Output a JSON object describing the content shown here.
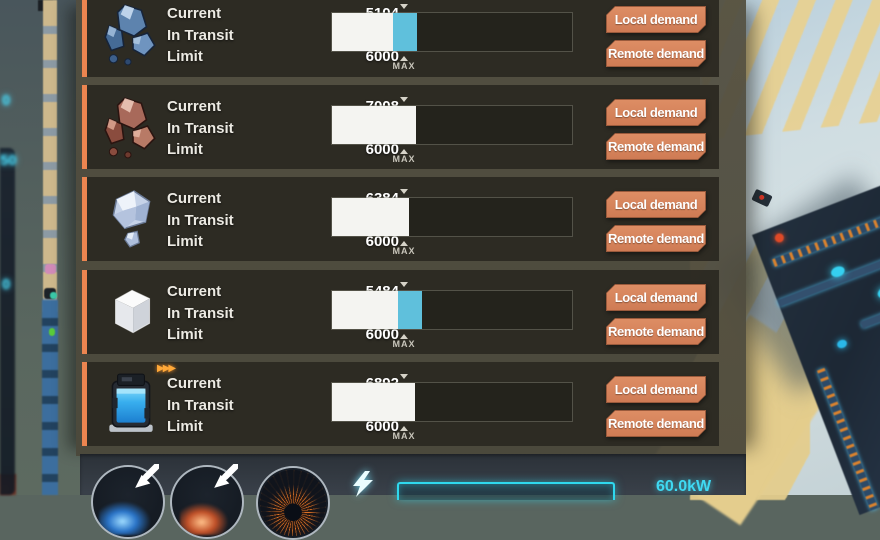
{
  "station_panel": {
    "field_labels": {
      "current": "Current",
      "in_transit": "In Transit",
      "limit": "Limit"
    },
    "max_label": "MAX",
    "buttons": {
      "local": "Local demand",
      "remote": "Remote demand"
    },
    "slot_capacity": 20000,
    "rows": [
      {
        "item": "blue ore crystals",
        "current": "5104",
        "in_transit": "+2000",
        "limit": "6000",
        "current_num": 5104,
        "in_transit_num": 2000,
        "limit_num": 6000
      },
      {
        "item": "copper ore chunks",
        "current": "7008",
        "in_transit": "0",
        "limit": "6000",
        "current_num": 7008,
        "in_transit_num": 0,
        "limit_num": 6000
      },
      {
        "item": "pale crystal",
        "current": "6384",
        "in_transit": "0",
        "limit": "6000",
        "current_num": 6384,
        "in_transit_num": 0,
        "limit_num": 6000
      },
      {
        "item": "white cube",
        "current": "5484",
        "in_transit": "+2000",
        "limit": "6000",
        "current_num": 5484,
        "in_transit_num": 2000,
        "limit_num": 6000
      },
      {
        "item": "fluid container",
        "current": "6892",
        "in_transit": "0",
        "limit": "6000",
        "current_num": 6892,
        "in_transit_num": 0,
        "limit_num": 6000
      }
    ]
  },
  "footer": {
    "power_reading": "60.0kW"
  },
  "background": {
    "blur_digits": [
      "0",
      "50",
      "0"
    ]
  },
  "colors": {
    "accent_orange": "#ec8550",
    "button_fill": "#d5825c",
    "transit_cyan": "#3fd4f0",
    "bar_current": "#f4f4f1",
    "bar_transit": "#5fc0dc",
    "power_cyan": "#3fd9f2"
  }
}
